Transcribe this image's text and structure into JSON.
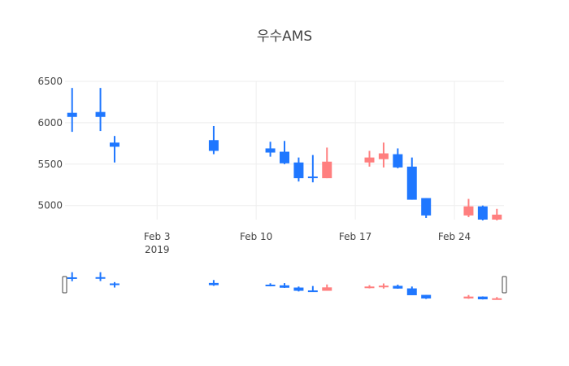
{
  "chart_data": {
    "type": "candlestick",
    "title": "우수AMS",
    "colors": {
      "increasing": "#ff7f7f",
      "decreasing": "#1f77ff",
      "grid": "#eeeeee",
      "text": "#444444"
    },
    "y_ticks": [
      "6500",
      "6000",
      "5500",
      "5000"
    ],
    "y_range": [
      4830,
      6500
    ],
    "x_range": [
      "2019-01-28",
      "2019-02-27"
    ],
    "x_ticks": [
      {
        "date": "2019-02-03",
        "label": "Feb 3",
        "sublabel": "2019"
      },
      {
        "date": "2019-02-10",
        "label": "Feb 10",
        "sublabel": ""
      },
      {
        "date": "2019-02-17",
        "label": "Feb 17",
        "sublabel": ""
      },
      {
        "date": "2019-02-24",
        "label": "Feb 24",
        "sublabel": ""
      }
    ],
    "rangeslider": true,
    "series": [
      {
        "date": "2019-01-28",
        "open": 6120,
        "high": 6420,
        "low": 5890,
        "close": 6070
      },
      {
        "date": "2019-01-30",
        "open": 6130,
        "high": 6420,
        "low": 5900,
        "close": 6070
      },
      {
        "date": "2019-01-31",
        "open": 5760,
        "high": 5840,
        "low": 5520,
        "close": 5710
      },
      {
        "date": "2019-02-07",
        "open": 5790,
        "high": 5960,
        "low": 5620,
        "close": 5660
      },
      {
        "date": "2019-02-11",
        "open": 5690,
        "high": 5770,
        "low": 5590,
        "close": 5640
      },
      {
        "date": "2019-02-12",
        "open": 5650,
        "high": 5780,
        "low": 5500,
        "close": 5510
      },
      {
        "date": "2019-02-13",
        "open": 5520,
        "high": 5580,
        "low": 5290,
        "close": 5330
      },
      {
        "date": "2019-02-14",
        "open": 5350,
        "high": 5610,
        "low": 5280,
        "close": 5340
      },
      {
        "date": "2019-02-15",
        "open": 5330,
        "high": 5700,
        "low": 5330,
        "close": 5530
      },
      {
        "date": "2019-02-18",
        "open": 5520,
        "high": 5660,
        "low": 5470,
        "close": 5580
      },
      {
        "date": "2019-02-19",
        "open": 5560,
        "high": 5760,
        "low": 5460,
        "close": 5630
      },
      {
        "date": "2019-02-20",
        "open": 5620,
        "high": 5690,
        "low": 5450,
        "close": 5460
      },
      {
        "date": "2019-02-21",
        "open": 5470,
        "high": 5580,
        "low": 5070,
        "close": 5070
      },
      {
        "date": "2019-02-22",
        "open": 5090,
        "high": 5090,
        "low": 4850,
        "close": 4880
      },
      {
        "date": "2019-02-25",
        "open": 4880,
        "high": 5080,
        "low": 4860,
        "close": 4990
      },
      {
        "date": "2019-02-26",
        "open": 4990,
        "high": 5000,
        "low": 4820,
        "close": 4830
      },
      {
        "date": "2019-02-27",
        "open": 4830,
        "high": 4960,
        "low": 4820,
        "close": 4890
      }
    ]
  }
}
